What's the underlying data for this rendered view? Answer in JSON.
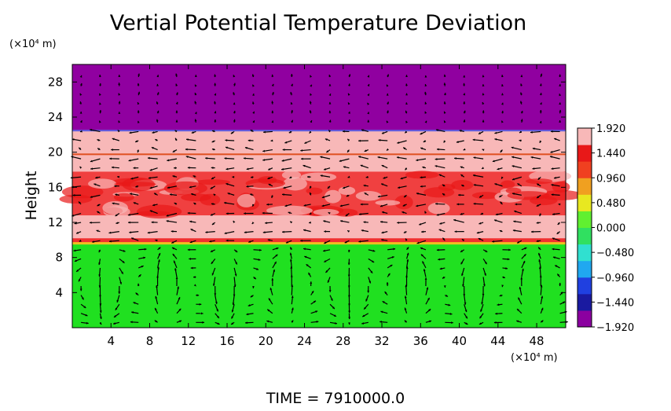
{
  "chart_data": {
    "type": "heatmap",
    "title": "Vertial Potential Temperature Deviation",
    "ylabel": "Height",
    "x_unit_label": "(×10⁴ m)",
    "y_unit_label": "(×10⁴ m)",
    "xlim": [
      0,
      51
    ],
    "ylim": [
      0,
      30
    ],
    "x_ticks": [
      4,
      8,
      12,
      16,
      20,
      24,
      28,
      32,
      36,
      40,
      44,
      48
    ],
    "y_ticks": [
      4,
      8,
      12,
      16,
      20,
      24,
      28
    ],
    "colorbar": {
      "range": [
        -1.92,
        1.92
      ],
      "tick_values": [
        1.92,
        1.44,
        0.96,
        0.48,
        0.0,
        -0.48,
        -0.96,
        -1.44,
        -1.92
      ],
      "tick_labels": [
        "1.920",
        "1.440",
        "0.960",
        "0.480",
        "0.000",
        "−0.480",
        "−0.960",
        "−1.440",
        "−1.920"
      ],
      "colors": [
        "#8b00a0",
        "#1a1aa0",
        "#2040e0",
        "#20a8f0",
        "#30e0d0",
        "#30e060",
        "#60f030",
        "#e8e820",
        "#f0a020",
        "#f04020",
        "#e81818",
        "#f8b8b8"
      ]
    },
    "regions": [
      {
        "y_from": 0,
        "y_to": 9.6,
        "value": 0.0,
        "color": "#20e020"
      },
      {
        "y_from": 9.6,
        "y_to": 10.2,
        "value": 1.2,
        "color": "#f03030"
      },
      {
        "y_from": 10.2,
        "y_to": 12.8,
        "value": 1.92,
        "color": "#f8b8b8"
      },
      {
        "y_from": 12.8,
        "y_to": 17.8,
        "value": 1.6,
        "color": "#f04040"
      },
      {
        "y_from": 17.8,
        "y_to": 22.5,
        "value": 1.92,
        "color": "#f8b8b8"
      },
      {
        "y_from": 22.5,
        "y_to": 30,
        "value": -1.92,
        "color": "#9000a0"
      }
    ],
    "vector_field": {
      "description_rows": [
        {
          "y": 2,
          "pattern": "circulation"
        },
        {
          "y": 9,
          "pattern": "circulation"
        },
        {
          "y": 15,
          "pattern": "jet"
        },
        {
          "y": 19,
          "pattern": "jet"
        },
        {
          "y": 26,
          "pattern": "quiet"
        }
      ]
    }
  },
  "footer": {
    "time_label": "TIME  =  7910000.0"
  }
}
